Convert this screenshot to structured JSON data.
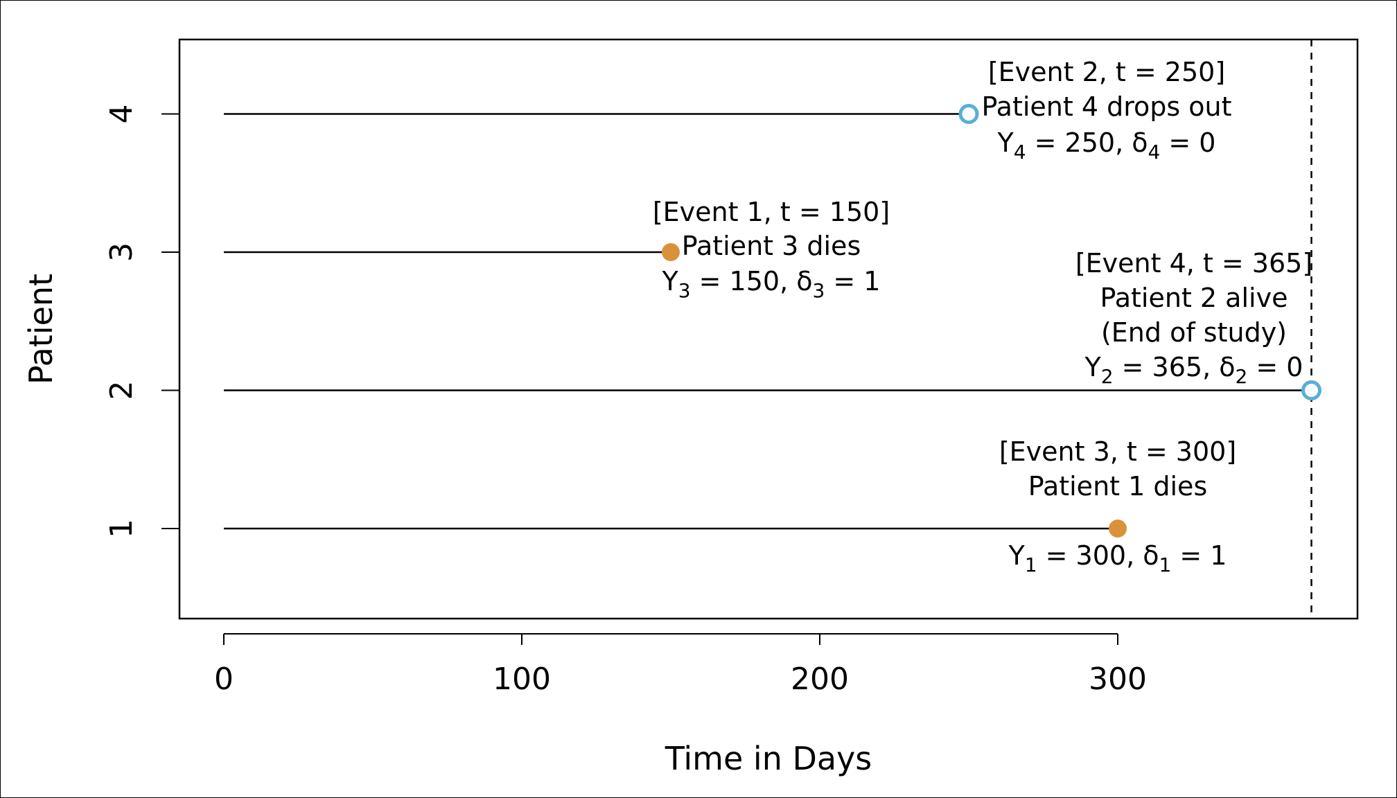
{
  "chart_data": {
    "type": "scatter",
    "title": "",
    "xlabel": "Time in Days",
    "ylabel": "Patient",
    "xlim": [
      -15,
      380
    ],
    "ylim": [
      0.35,
      4.55
    ],
    "x_ticks": [
      0,
      100,
      200,
      300
    ],
    "y_ticks": [
      1,
      2,
      3,
      4
    ],
    "grid": false,
    "end_of_study_line": 365,
    "colors": {
      "death": "#d9923a",
      "censored": "#5aaed9",
      "line": "#000000"
    },
    "patients": [
      {
        "patient": 1,
        "time": 300,
        "status": "death",
        "marker": "filled",
        "annotation": [
          "[Event 3, t = 300]",
          "Patient 1 dies"
        ],
        "equation": {
          "y_main": "Y",
          "y_sub": "1",
          "y_val": " = 300, ",
          "d_main": "δ",
          "d_sub": "1",
          "d_val": " = 1"
        }
      },
      {
        "patient": 2,
        "time": 365,
        "status": "censored",
        "marker": "open",
        "annotation": [
          "[Event 4, t = 365]",
          "Patient 2 alive",
          "(End of study)"
        ],
        "equation": {
          "y_main": "Y",
          "y_sub": "2",
          "y_val": " = 365, ",
          "d_main": "δ",
          "d_sub": "2",
          "d_val": " = 0"
        }
      },
      {
        "patient": 3,
        "time": 150,
        "status": "death",
        "marker": "filled",
        "annotation": [
          "[Event 1, t = 150]",
          "Patient 3 dies"
        ],
        "equation": {
          "y_main": "Y",
          "y_sub": "3",
          "y_val": " = 150, ",
          "d_main": "δ",
          "d_sub": "3",
          "d_val": " = 1"
        }
      },
      {
        "patient": 4,
        "time": 250,
        "status": "censored",
        "marker": "open",
        "annotation": [
          "[Event 2, t = 250]",
          "Patient 4 drops out"
        ],
        "equation": {
          "y_main": "Y",
          "y_sub": "4",
          "y_val": " = 250, ",
          "d_main": "δ",
          "d_sub": "4",
          "d_val": " = 0"
        }
      }
    ]
  }
}
